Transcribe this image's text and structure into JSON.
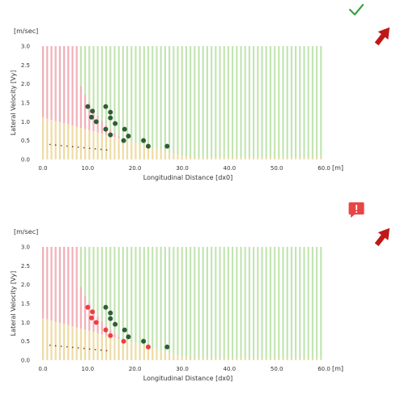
{
  "colors": {
    "green_zone": "#b8e0a4",
    "red_zone": "#f2a6b0",
    "yellow_zone": "#ecd79a",
    "dark_point": "#2f5e35",
    "red_point": "#ee3e3e",
    "check_icon": "#3aa147",
    "alert_icon": "#e84545",
    "arrow": "#c01818"
  },
  "panels": [
    {
      "status_icon": "check-icon",
      "arrow_icon": "pointer-arrow-icon",
      "chart_data": {
        "type": "scatter",
        "ylabel": "Lateral Velocity [Vy]",
        "xlabel": "Longitudinal Distance [dx0]",
        "y_unit": "[m/sec]",
        "x_unit": "[m]",
        "xlim": [
          0,
          60
        ],
        "ylim": [
          0,
          3
        ],
        "x_ticks": [
          "0.0",
          "10.0",
          "20.0",
          "30.0",
          "40.0",
          "50.0",
          "60.0"
        ],
        "y_ticks": [
          "0.0",
          "0.5",
          "1.0",
          "1.5",
          "2.0",
          "2.5",
          "3.0"
        ],
        "points": [
          {
            "x": 10.0,
            "y": 1.4,
            "k": "dark"
          },
          {
            "x": 11.0,
            "y": 1.28,
            "k": "dark"
          },
          {
            "x": 10.8,
            "y": 1.12,
            "k": "dark"
          },
          {
            "x": 11.8,
            "y": 1.0,
            "k": "dark"
          },
          {
            "x": 13.8,
            "y": 1.4,
            "k": "dark"
          },
          {
            "x": 14.8,
            "y": 1.25,
            "k": "dark"
          },
          {
            "x": 14.8,
            "y": 1.1,
            "k": "dark"
          },
          {
            "x": 15.8,
            "y": 0.95,
            "k": "dark"
          },
          {
            "x": 13.8,
            "y": 0.8,
            "k": "dark"
          },
          {
            "x": 14.8,
            "y": 0.65,
            "k": "dark"
          },
          {
            "x": 17.8,
            "y": 0.8,
            "k": "dark"
          },
          {
            "x": 18.6,
            "y": 0.62,
            "k": "dark"
          },
          {
            "x": 17.6,
            "y": 0.5,
            "k": "dark"
          },
          {
            "x": 21.8,
            "y": 0.5,
            "k": "dark"
          },
          {
            "x": 22.8,
            "y": 0.35,
            "k": "dark"
          },
          {
            "x": 26.8,
            "y": 0.35,
            "k": "dark"
          }
        ]
      }
    },
    {
      "status_icon": "alert-icon",
      "arrow_icon": "pointer-arrow-icon",
      "chart_data": {
        "type": "scatter",
        "ylabel": "Lateral Velocity [Vy]",
        "xlabel": "Longitudinal Distance [dx0]",
        "y_unit": "[m/sec]",
        "x_unit": "[m]",
        "xlim": [
          0,
          60
        ],
        "ylim": [
          0,
          3
        ],
        "x_ticks": [
          "0.0",
          "10.0",
          "20.0",
          "30.0",
          "40.0",
          "50.0",
          "60.0"
        ],
        "y_ticks": [
          "0.0",
          "0.5",
          "1.0",
          "1.5",
          "2.0",
          "2.5",
          "3.0"
        ],
        "points": [
          {
            "x": 10.0,
            "y": 1.4,
            "k": "red"
          },
          {
            "x": 11.0,
            "y": 1.28,
            "k": "red"
          },
          {
            "x": 10.8,
            "y": 1.12,
            "k": "red"
          },
          {
            "x": 11.8,
            "y": 1.0,
            "k": "red"
          },
          {
            "x": 13.8,
            "y": 1.4,
            "k": "dark"
          },
          {
            "x": 14.8,
            "y": 1.25,
            "k": "dark"
          },
          {
            "x": 14.8,
            "y": 1.1,
            "k": "dark"
          },
          {
            "x": 15.8,
            "y": 0.95,
            "k": "dark"
          },
          {
            "x": 13.8,
            "y": 0.8,
            "k": "red"
          },
          {
            "x": 14.8,
            "y": 0.65,
            "k": "red"
          },
          {
            "x": 17.8,
            "y": 0.8,
            "k": "dark"
          },
          {
            "x": 18.6,
            "y": 0.62,
            "k": "dark"
          },
          {
            "x": 17.6,
            "y": 0.5,
            "k": "red"
          },
          {
            "x": 21.8,
            "y": 0.5,
            "k": "dark"
          },
          {
            "x": 22.8,
            "y": 0.35,
            "k": "red"
          },
          {
            "x": 26.8,
            "y": 0.35,
            "k": "dark"
          }
        ]
      }
    }
  ]
}
